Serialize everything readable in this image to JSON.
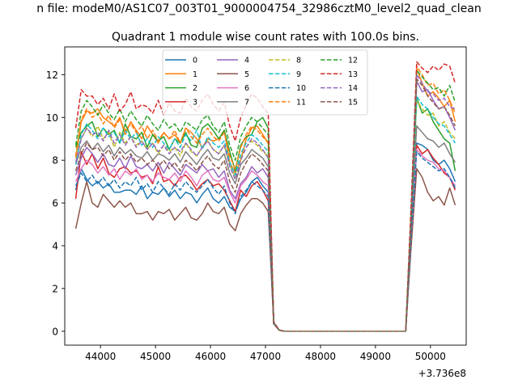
{
  "figure": {
    "suptitle": "n file: modeM0/AS1C07_003T01_9000004754_32986cztM0_level2_quad_clean",
    "title": "Quadrant 1 module wise count rates with 100.0s bins."
  },
  "chart_data": {
    "type": "line",
    "title": "Quadrant 1 module wise count rates with 100.0s bins.",
    "xlabel": "",
    "ylabel": "",
    "x_offset_label": "+3.736e8",
    "xlim": [
      43350,
      50650
    ],
    "ylim": [
      -0.65,
      13.3
    ],
    "xticks": [
      44000,
      45000,
      46000,
      47000,
      48000,
      49000,
      50000
    ],
    "yticks": [
      0,
      2,
      4,
      6,
      8,
      10,
      12
    ],
    "grid": false,
    "legend": {
      "placement": "top-center",
      "columns": 4
    },
    "x": [
      43550,
      43650,
      43750,
      43850,
      43950,
      44050,
      44150,
      44250,
      44350,
      44450,
      44550,
      44650,
      44750,
      44850,
      44950,
      45050,
      45150,
      45250,
      45350,
      45450,
      45550,
      45650,
      45750,
      45850,
      45950,
      46050,
      46150,
      46250,
      46350,
      46450,
      46550,
      46650,
      46750,
      46850,
      46950,
      47050,
      47150,
      47250,
      47350,
      47450,
      47550,
      47650,
      47750,
      47850,
      47950,
      48050,
      48150,
      48250,
      48350,
      48450,
      48550,
      48650,
      48750,
      48850,
      48950,
      49050,
      49150,
      49250,
      49350,
      49450,
      49550,
      49650,
      49750,
      49850,
      49950,
      50050,
      50150,
      50250,
      50350,
      50450
    ],
    "series": [
      {
        "name": "0",
        "color": "#1f77b4",
        "dash": "solid",
        "values": [
          6.6,
          7.6,
          7.1,
          6.8,
          7.0,
          6.7,
          6.9,
          6.5,
          6.5,
          6.6,
          6.6,
          6.4,
          6.8,
          6.2,
          6.5,
          6.4,
          6.7,
          6.3,
          6.6,
          6.2,
          6.5,
          6.4,
          6.0,
          6.4,
          6.7,
          6.2,
          6.0,
          6.3,
          5.8,
          5.6,
          6.2,
          6.5,
          7.0,
          7.2,
          6.8,
          6.5,
          0.35,
          0.05,
          0,
          0,
          0,
          0,
          0,
          0,
          0,
          0,
          0,
          0,
          0,
          0,
          0,
          0,
          0,
          0,
          0,
          0,
          0,
          0,
          0,
          0,
          0,
          4.5,
          8.8,
          8.7,
          8.5,
          8.0,
          7.8,
          8.0,
          7.6,
          7.0
        ]
      },
      {
        "name": "1",
        "color": "#ff7f0e",
        "dash": "solid",
        "values": [
          8.1,
          9.8,
          10.3,
          10.2,
          10.4,
          10.0,
          9.8,
          9.6,
          10.0,
          9.2,
          9.8,
          9.4,
          9.0,
          9.6,
          9.2,
          8.8,
          9.3,
          9.0,
          9.2,
          8.8,
          9.5,
          9.3,
          9.0,
          8.6,
          9.0,
          8.9,
          9.0,
          9.4,
          7.9,
          7.4,
          8.0,
          9.0,
          9.5,
          9.6,
          9.2,
          8.8,
          0.4,
          0.05,
          0,
          0,
          0,
          0,
          0,
          0,
          0,
          0,
          0,
          0,
          0,
          0,
          0,
          0,
          0,
          0,
          0,
          0,
          0,
          0,
          0,
          0,
          0,
          5.5,
          12.3,
          11.6,
          11.0,
          11.2,
          10.9,
          10.5,
          10.8,
          9.8
        ]
      },
      {
        "name": "2",
        "color": "#2ca02c",
        "dash": "solid",
        "values": [
          8.6,
          9.3,
          9.6,
          9.8,
          9.1,
          9.5,
          9.2,
          9.4,
          8.8,
          9.7,
          9.1,
          9.0,
          9.3,
          8.6,
          9.2,
          8.9,
          9.1,
          8.5,
          9.0,
          8.8,
          9.3,
          8.7,
          8.6,
          9.5,
          9.7,
          9.4,
          9.0,
          9.4,
          8.4,
          7.5,
          8.7,
          9.1,
          9.2,
          9.8,
          10.0,
          9.5,
          0.4,
          0.05,
          0,
          0,
          0,
          0,
          0,
          0,
          0,
          0,
          0,
          0,
          0,
          0,
          0,
          0,
          0,
          0,
          0,
          0,
          0,
          0,
          0,
          0,
          0,
          5.4,
          10.9,
          10.2,
          10.4,
          9.8,
          9.4,
          9.0,
          8.8,
          7.5
        ]
      },
      {
        "name": "3",
        "color": "#d62728",
        "dash": "solid",
        "values": [
          6.2,
          8.4,
          7.8,
          8.3,
          7.6,
          8.1,
          7.4,
          7.2,
          7.6,
          7.7,
          7.4,
          7.5,
          7.2,
          7.3,
          6.9,
          7.7,
          7.0,
          7.1,
          6.8,
          7.2,
          7.3,
          7.0,
          6.6,
          6.9,
          7.1,
          6.8,
          6.9,
          6.6,
          6.1,
          5.6,
          6.6,
          6.3,
          6.8,
          7.0,
          6.6,
          6.1,
          0.35,
          0.05,
          0,
          0,
          0,
          0,
          0,
          0,
          0,
          0,
          0,
          0,
          0,
          0,
          0,
          0,
          0,
          0,
          0,
          0,
          0,
          0,
          0,
          0,
          0,
          4.6,
          8.7,
          8.3,
          8.5,
          8.1,
          7.8,
          7.4,
          7.2,
          6.6
        ]
      },
      {
        "name": "4",
        "color": "#9467bd",
        "dash": "solid",
        "values": [
          7.3,
          8.1,
          8.6,
          8.3,
          7.9,
          8.3,
          7.8,
          7.7,
          8.1,
          7.6,
          8.2,
          7.7,
          7.6,
          7.8,
          7.5,
          7.9,
          7.4,
          7.9,
          7.6,
          7.3,
          7.8,
          7.6,
          7.4,
          7.8,
          7.5,
          7.6,
          7.2,
          7.5,
          6.6,
          6.2,
          6.9,
          7.2,
          7.7,
          7.4,
          7.6,
          7.2,
          0.4,
          0.05,
          0,
          0,
          0,
          0,
          0,
          0,
          0,
          0,
          0,
          0,
          0,
          0,
          0,
          0,
          0,
          0,
          0,
          0,
          0,
          0,
          0,
          0,
          0,
          5.3,
          11.7,
          11.2,
          11.3,
          10.8,
          10.4,
          10.5,
          10.0,
          9.4
        ]
      },
      {
        "name": "5",
        "color": "#8c564b",
        "dash": "solid",
        "values": [
          4.8,
          6.0,
          7.0,
          6.0,
          5.8,
          6.4,
          6.1,
          5.8,
          6.1,
          5.8,
          6.0,
          5.5,
          5.5,
          5.6,
          5.2,
          5.6,
          5.5,
          5.7,
          5.2,
          5.5,
          5.8,
          5.3,
          5.2,
          5.5,
          6.0,
          5.6,
          5.5,
          5.8,
          5.0,
          4.7,
          5.5,
          5.9,
          6.2,
          6.2,
          6.0,
          5.6,
          0.35,
          0.05,
          0,
          0,
          0,
          0,
          0,
          0,
          0,
          0,
          0,
          0,
          0,
          0,
          0,
          0,
          0,
          0,
          0,
          0,
          0,
          0,
          0,
          0,
          0,
          4.0,
          7.6,
          7.2,
          6.5,
          6.1,
          6.3,
          5.9,
          6.7,
          5.9
        ]
      },
      {
        "name": "6",
        "color": "#e377c2",
        "dash": "solid",
        "values": [
          7.0,
          7.6,
          8.0,
          7.8,
          7.4,
          7.7,
          7.3,
          7.6,
          7.1,
          7.5,
          7.3,
          7.6,
          7.1,
          7.3,
          7.0,
          7.4,
          7.2,
          7.1,
          7.4,
          7.0,
          7.5,
          7.2,
          6.8,
          7.3,
          7.5,
          7.1,
          7.0,
          7.2,
          6.5,
          6.0,
          6.8,
          7.1,
          7.5,
          7.3,
          7.0,
          6.8,
          0.35,
          0.05,
          0,
          0,
          0,
          0,
          0,
          0,
          0,
          0,
          0,
          0,
          0,
          0,
          0,
          0,
          0,
          0,
          0,
          0,
          0,
          0,
          0,
          0,
          0,
          4.6,
          8.5,
          8.2,
          8.0,
          7.9,
          7.6,
          7.5,
          7.2,
          6.8
        ]
      },
      {
        "name": "7",
        "color": "#7f7f7f",
        "dash": "solid",
        "values": [
          7.8,
          8.6,
          8.9,
          8.5,
          8.8,
          8.4,
          8.7,
          8.2,
          8.6,
          8.3,
          8.5,
          8.2,
          8.1,
          8.4,
          8.0,
          8.3,
          8.2,
          8.0,
          8.3,
          7.9,
          8.4,
          8.1,
          7.8,
          8.2,
          8.5,
          8.1,
          8.0,
          8.3,
          7.4,
          6.9,
          7.8,
          8.1,
          8.5,
          8.3,
          8.1,
          7.7,
          0.4,
          0.05,
          0,
          0,
          0,
          0,
          0,
          0,
          0,
          0,
          0,
          0,
          0,
          0,
          0,
          0,
          0,
          0,
          0,
          0,
          0,
          0,
          0,
          0,
          0,
          5.1,
          9.6,
          9.3,
          9.0,
          8.9,
          8.6,
          8.8,
          8.3,
          7.9
        ]
      },
      {
        "name": "8",
        "color": "#bcbd22",
        "dash": "dashed",
        "values": [
          8.3,
          9.0,
          9.5,
          9.1,
          9.6,
          9.0,
          9.3,
          8.6,
          9.3,
          8.8,
          9.1,
          8.7,
          8.9,
          8.5,
          8.8,
          8.3,
          8.7,
          8.4,
          8.6,
          8.2,
          8.8,
          8.4,
          8.2,
          8.6,
          8.9,
          8.5,
          8.3,
          8.7,
          7.8,
          7.2,
          8.1,
          8.6,
          8.9,
          8.7,
          8.4,
          8.2,
          0.4,
          0.05,
          0,
          0,
          0,
          0,
          0,
          0,
          0,
          0,
          0,
          0,
          0,
          0,
          0,
          0,
          0,
          0,
          0,
          0,
          0,
          0,
          0,
          0,
          0,
          5.2,
          10.8,
          10.4,
          10.1,
          10.2,
          9.6,
          9.8,
          9.3,
          9.0
        ]
      },
      {
        "name": "9",
        "color": "#17becf",
        "dash": "dashed",
        "values": [
          7.8,
          9.2,
          9.7,
          9.4,
          9.0,
          9.5,
          9.1,
          9.3,
          8.8,
          9.4,
          9.0,
          9.3,
          8.7,
          9.0,
          8.6,
          9.1,
          8.8,
          8.5,
          9.0,
          8.6,
          9.2,
          8.9,
          9.4,
          8.5,
          9.1,
          8.8,
          8.6,
          8.9,
          7.9,
          7.3,
          8.3,
          8.8,
          9.2,
          9.0,
          8.7,
          8.4,
          0.4,
          0.05,
          0,
          0,
          0,
          0,
          0,
          0,
          0,
          0,
          0,
          0,
          0,
          0,
          0,
          0,
          0,
          0,
          0,
          0,
          0,
          0,
          0,
          0,
          0,
          5.0,
          11.0,
          10.6,
          10.4,
          10.0,
          9.7,
          9.6,
          9.2,
          8.8
        ]
      },
      {
        "name": "10",
        "color": "#1f77b4",
        "dash": "dashed",
        "values": [
          6.8,
          7.4,
          7.0,
          7.3,
          6.9,
          7.2,
          6.8,
          7.1,
          6.7,
          7.0,
          6.8,
          7.2,
          6.6,
          6.9,
          6.5,
          7.0,
          6.7,
          6.4,
          6.9,
          6.6,
          7.0,
          6.7,
          6.5,
          6.8,
          7.1,
          6.7,
          6.4,
          6.8,
          6.0,
          5.5,
          6.3,
          6.6,
          7.0,
          6.8,
          6.6,
          6.3,
          0.35,
          0.05,
          0,
          0,
          0,
          0,
          0,
          0,
          0,
          0,
          0,
          0,
          0,
          0,
          0,
          0,
          0,
          0,
          0,
          0,
          0,
          0,
          0,
          0,
          0,
          4.5,
          8.4,
          8.1,
          7.9,
          7.7,
          7.5,
          7.6,
          7.2,
          6.7
        ]
      },
      {
        "name": "11",
        "color": "#ff7f0e",
        "dash": "dashed",
        "values": [
          8.2,
          9.9,
          10.4,
          10.0,
          10.2,
          9.7,
          10.1,
          9.5,
          9.9,
          9.4,
          9.7,
          9.3,
          9.6,
          9.0,
          9.4,
          8.9,
          9.3,
          9.0,
          9.4,
          8.8,
          9.5,
          9.1,
          8.8,
          9.2,
          9.5,
          9.1,
          8.9,
          9.3,
          8.2,
          7.6,
          8.6,
          9.2,
          9.6,
          9.4,
          9.1,
          8.8,
          0.4,
          0.05,
          0,
          0,
          0,
          0,
          0,
          0,
          0,
          0,
          0,
          0,
          0,
          0,
          0,
          0,
          0,
          0,
          0,
          0,
          0,
          0,
          0,
          0,
          0,
          5.6,
          12.4,
          12.0,
          11.5,
          11.6,
          11.1,
          11.3,
          10.8,
          10.2
        ]
      },
      {
        "name": "12",
        "color": "#2ca02c",
        "dash": "dashed",
        "values": [
          8.7,
          10.3,
          10.8,
          10.5,
          10.1,
          10.6,
          10.2,
          9.9,
          10.4,
          9.8,
          10.3,
          9.9,
          9.6,
          10.1,
          9.7,
          9.4,
          9.9,
          9.5,
          9.7,
          9.3,
          9.8,
          9.6,
          9.4,
          9.9,
          10.1,
          9.6,
          9.3,
          9.8,
          8.7,
          8.0,
          9.1,
          9.6,
          10.0,
          9.8,
          9.5,
          9.2,
          0.4,
          0.05,
          0,
          0,
          0,
          0,
          0,
          0,
          0,
          0,
          0,
          0,
          0,
          0,
          0,
          0,
          0,
          0,
          0,
          0,
          0,
          0,
          0,
          0,
          0,
          5.7,
          12.2,
          11.9,
          11.6,
          11.3,
          11.4,
          11.0,
          11.5,
          10.7
        ]
      },
      {
        "name": "13",
        "color": "#d62728",
        "dash": "dashed",
        "values": [
          9.5,
          11.3,
          11.0,
          11.0,
          10.6,
          10.9,
          10.4,
          11.1,
          10.3,
          10.6,
          11.2,
          10.4,
          10.6,
          10.5,
          10.2,
          10.8,
          10.1,
          10.7,
          10.3,
          10.2,
          10.9,
          10.5,
          10.3,
          10.8,
          11.1,
          10.6,
          10.3,
          10.7,
          9.6,
          8.9,
          10.0,
          10.6,
          11.1,
          10.9,
          10.5,
          10.2,
          0.45,
          0.05,
          0,
          0,
          0,
          0,
          0,
          0,
          0,
          0,
          0,
          0,
          0,
          0,
          0,
          0,
          0,
          0,
          0,
          0,
          0,
          0,
          0,
          0,
          0,
          6.0,
          12.6,
          12.3,
          12.1,
          12.4,
          12.2,
          12.5,
          12.4,
          11.6
        ]
      },
      {
        "name": "14",
        "color": "#9467bd",
        "dash": "dashed",
        "values": [
          7.9,
          9.0,
          9.5,
          9.2,
          9.3,
          8.9,
          9.4,
          8.8,
          9.2,
          8.7,
          9.1,
          8.6,
          8.9,
          8.5,
          8.8,
          8.4,
          8.7,
          8.3,
          8.6,
          8.4,
          8.8,
          8.5,
          8.2,
          8.6,
          8.9,
          8.5,
          8.3,
          8.7,
          7.7,
          7.1,
          8.0,
          8.6,
          9.0,
          8.8,
          8.5,
          8.1,
          0.4,
          0.05,
          0,
          0,
          0,
          0,
          0,
          0,
          0,
          0,
          0,
          0,
          0,
          0,
          0,
          0,
          0,
          0,
          0,
          0,
          0,
          0,
          0,
          0,
          0,
          5.3,
          12.0,
          11.6,
          11.2,
          11.1,
          10.8,
          10.9,
          10.5,
          10.4
        ]
      },
      {
        "name": "15",
        "color": "#8c564b",
        "dash": "dashed",
        "values": [
          7.5,
          8.3,
          8.8,
          8.5,
          8.6,
          8.2,
          8.5,
          8.0,
          8.4,
          8.0,
          8.3,
          7.9,
          8.1,
          7.8,
          8.0,
          7.7,
          8.0,
          7.6,
          7.9,
          7.5,
          8.0,
          7.8,
          7.5,
          7.9,
          8.2,
          7.8,
          7.6,
          8.0,
          7.0,
          6.5,
          7.4,
          7.9,
          8.3,
          8.1,
          7.8,
          7.5,
          0.35,
          0.05,
          0,
          0,
          0,
          0,
          0,
          0,
          0,
          0,
          0,
          0,
          0,
          0,
          0,
          0,
          0,
          0,
          0,
          0,
          0,
          0,
          0,
          0,
          0,
          5.0,
          11.8,
          11.5,
          11.0,
          10.7,
          10.4,
          10.5,
          10.1,
          9.6
        ]
      }
    ]
  }
}
